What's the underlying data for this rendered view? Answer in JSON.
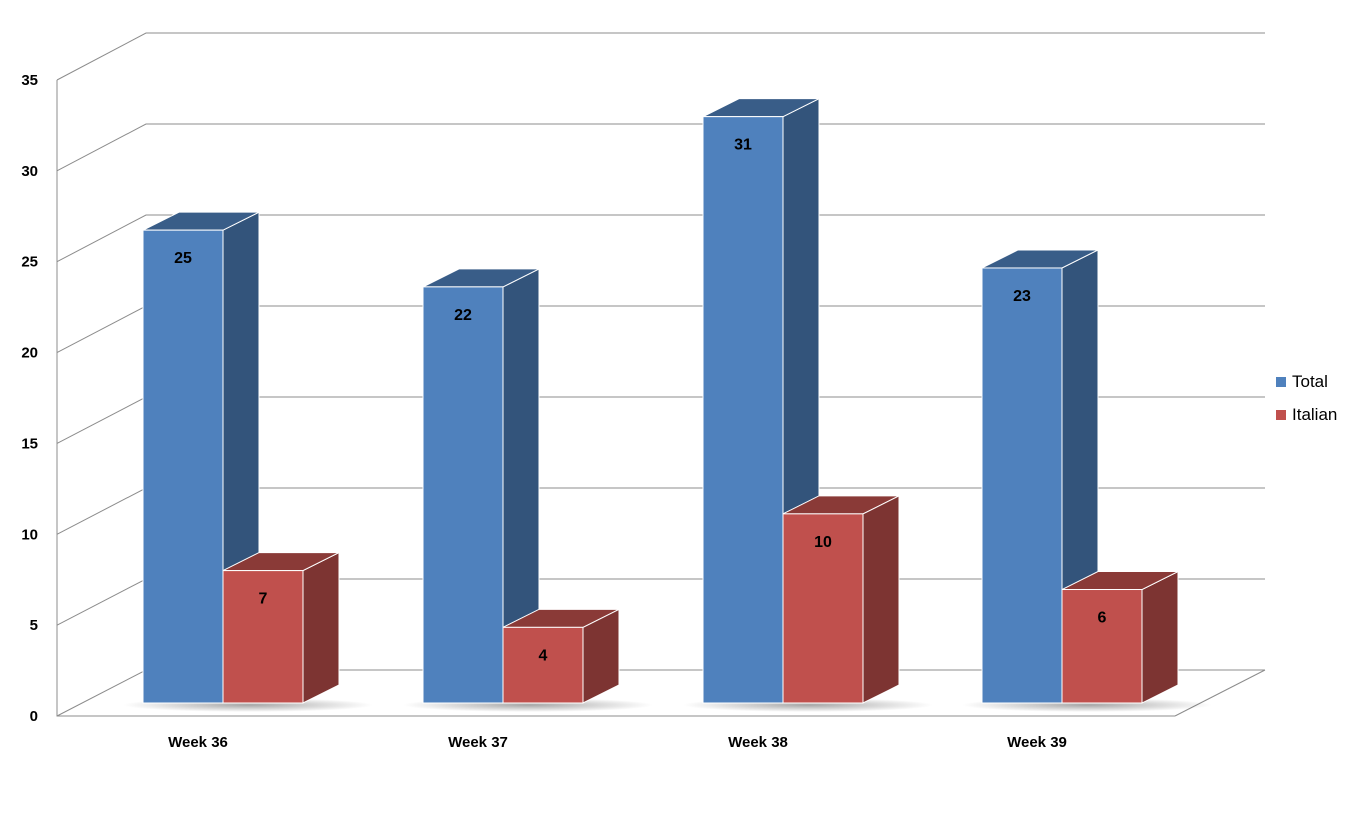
{
  "chart_data": {
    "type": "bar",
    "categories": [
      "Week 36",
      "Week 37",
      "Week 38",
      "Week 39"
    ],
    "series": [
      {
        "name": "Total",
        "values": [
          25,
          22,
          31,
          23
        ],
        "color": "#4F81BD"
      },
      {
        "name": "Italian",
        "values": [
          7,
          4,
          10,
          6
        ],
        "color": "#C0504D"
      }
    ],
    "yticks": [
      "0",
      "5",
      "10",
      "15",
      "20",
      "25",
      "30",
      "35"
    ],
    "ylim": [
      0,
      35
    ],
    "grid": true,
    "legend_position": "right",
    "data_labels": true
  },
  "legend": {
    "items": [
      {
        "label": "Total",
        "color": "#4F81BD"
      },
      {
        "label": "Italian",
        "color": "#C0504D"
      }
    ]
  }
}
